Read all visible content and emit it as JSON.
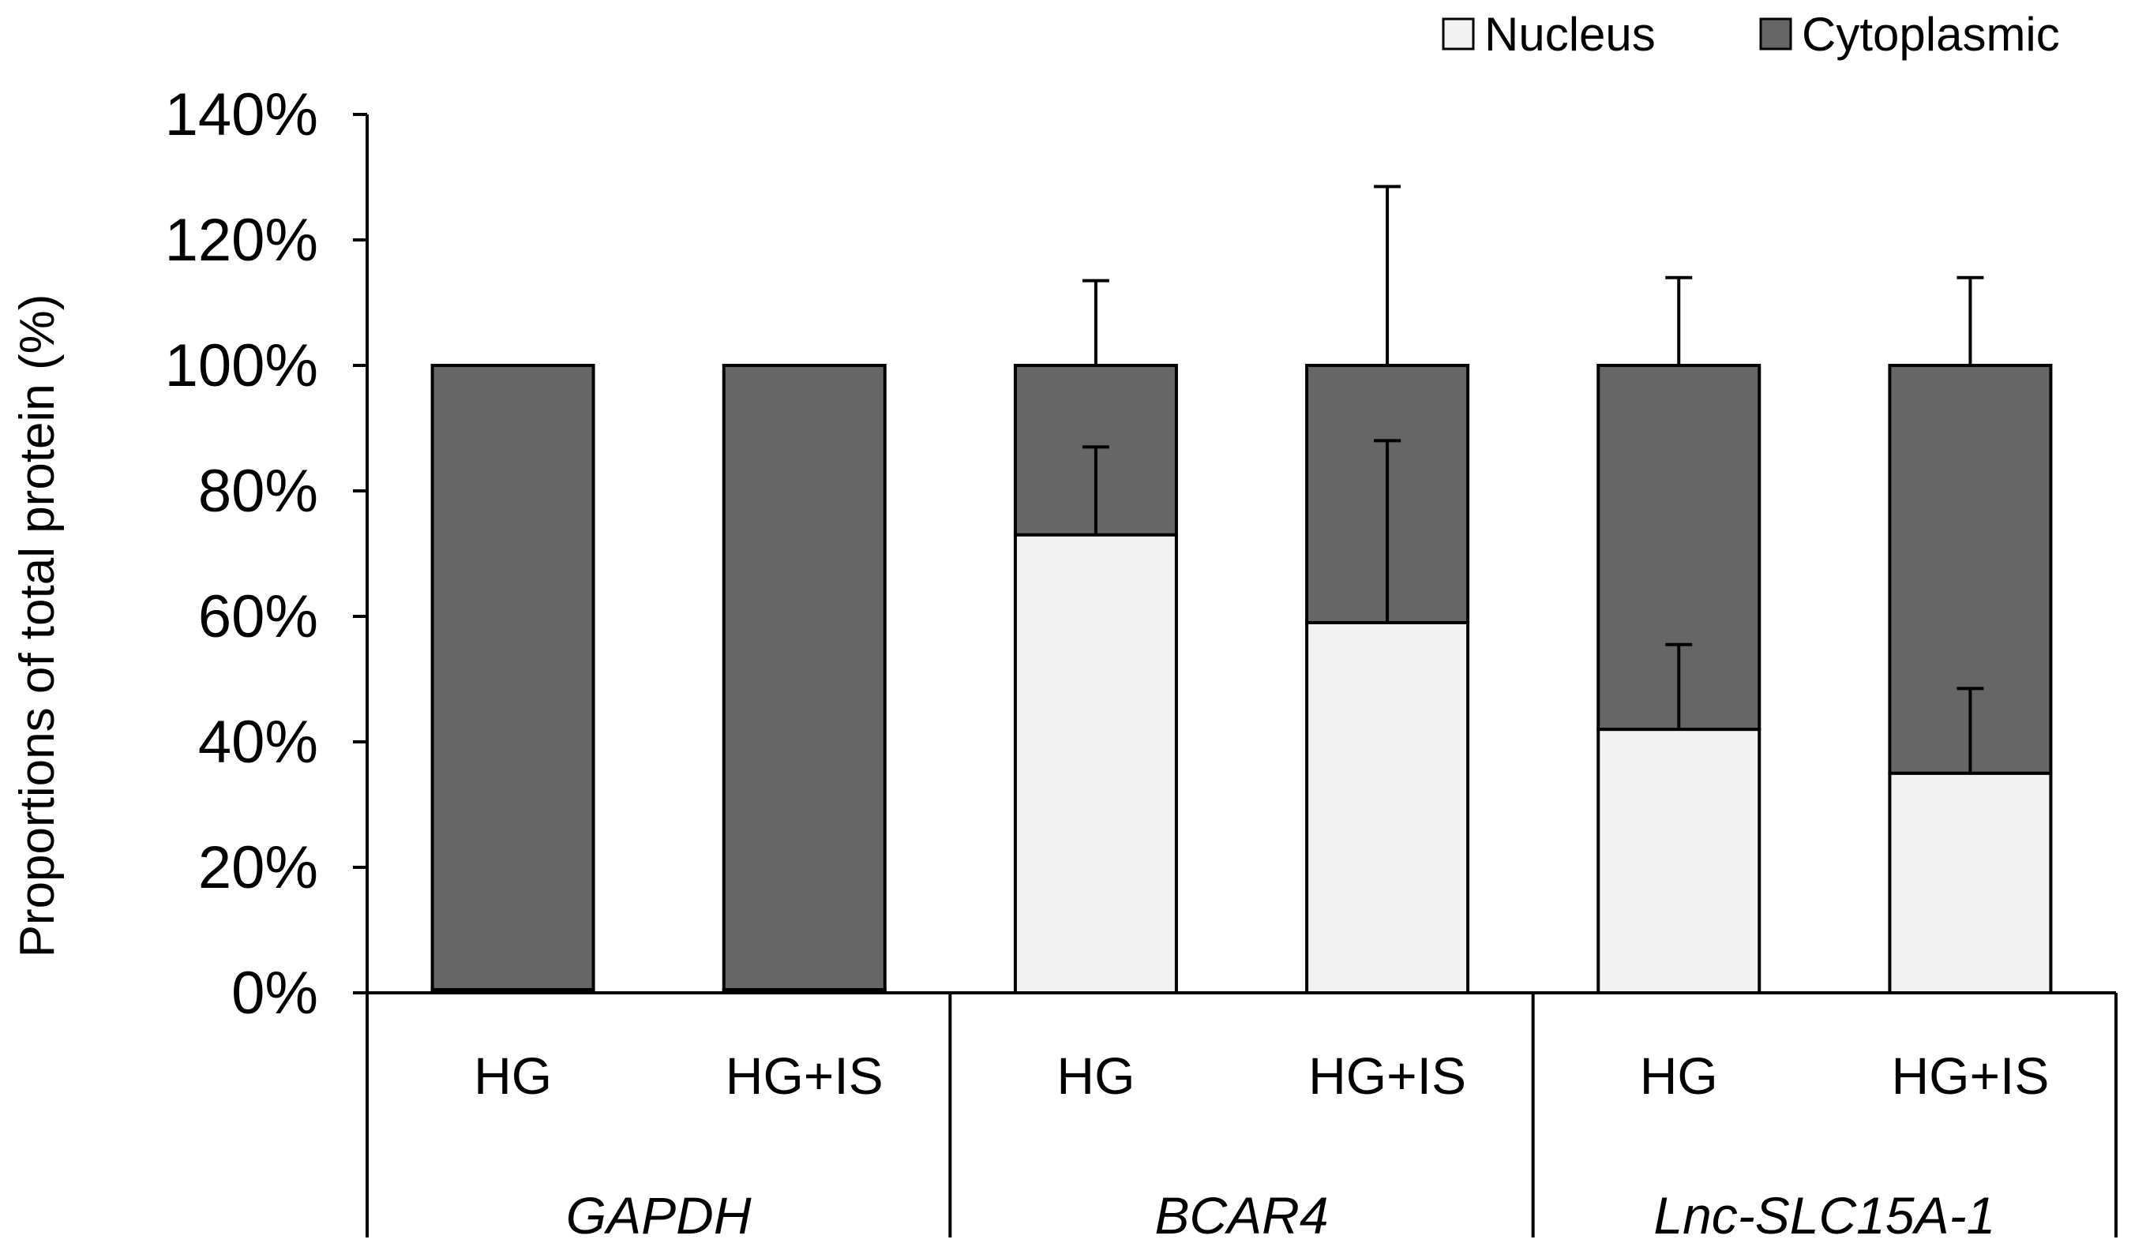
{
  "chart_data": {
    "type": "bar",
    "stacked": true,
    "title": "",
    "xlabel": "",
    "ylabel": "Proportions of total protein (%)",
    "ylim": [
      0,
      140
    ],
    "ytick_step": 20,
    "ytick_labels": [
      "0%",
      "20%",
      "40%",
      "60%",
      "80%",
      "100%",
      "120%",
      "140%"
    ],
    "legend_position": "top-right",
    "colors": {
      "Nucleus": "#f2f2f2",
      "Cytoplasmic": "#666666"
    },
    "groups": [
      {
        "name": "GAPDH",
        "categories": [
          "HG",
          "HG+IS"
        ]
      },
      {
        "name": "BCAR4",
        "categories": [
          "HG",
          "HG+IS"
        ]
      },
      {
        "name": "Lnc-SLC15A-1",
        "categories": [
          "HG",
          "HG+IS"
        ]
      }
    ],
    "categories": [
      "HG",
      "HG+IS",
      "HG",
      "HG+IS",
      "HG",
      "HG+IS"
    ],
    "series": [
      {
        "name": "Nucleus",
        "values": [
          0.5,
          0.5,
          73,
          59,
          42,
          35
        ],
        "error_upper": [
          0,
          0,
          14,
          29,
          13.5,
          13.5
        ]
      },
      {
        "name": "Cytoplasmic",
        "values": [
          99.5,
          99.5,
          27,
          41,
          58,
          65
        ],
        "error_upper": [
          0,
          0,
          13.5,
          28.5,
          14,
          14
        ]
      }
    ]
  }
}
